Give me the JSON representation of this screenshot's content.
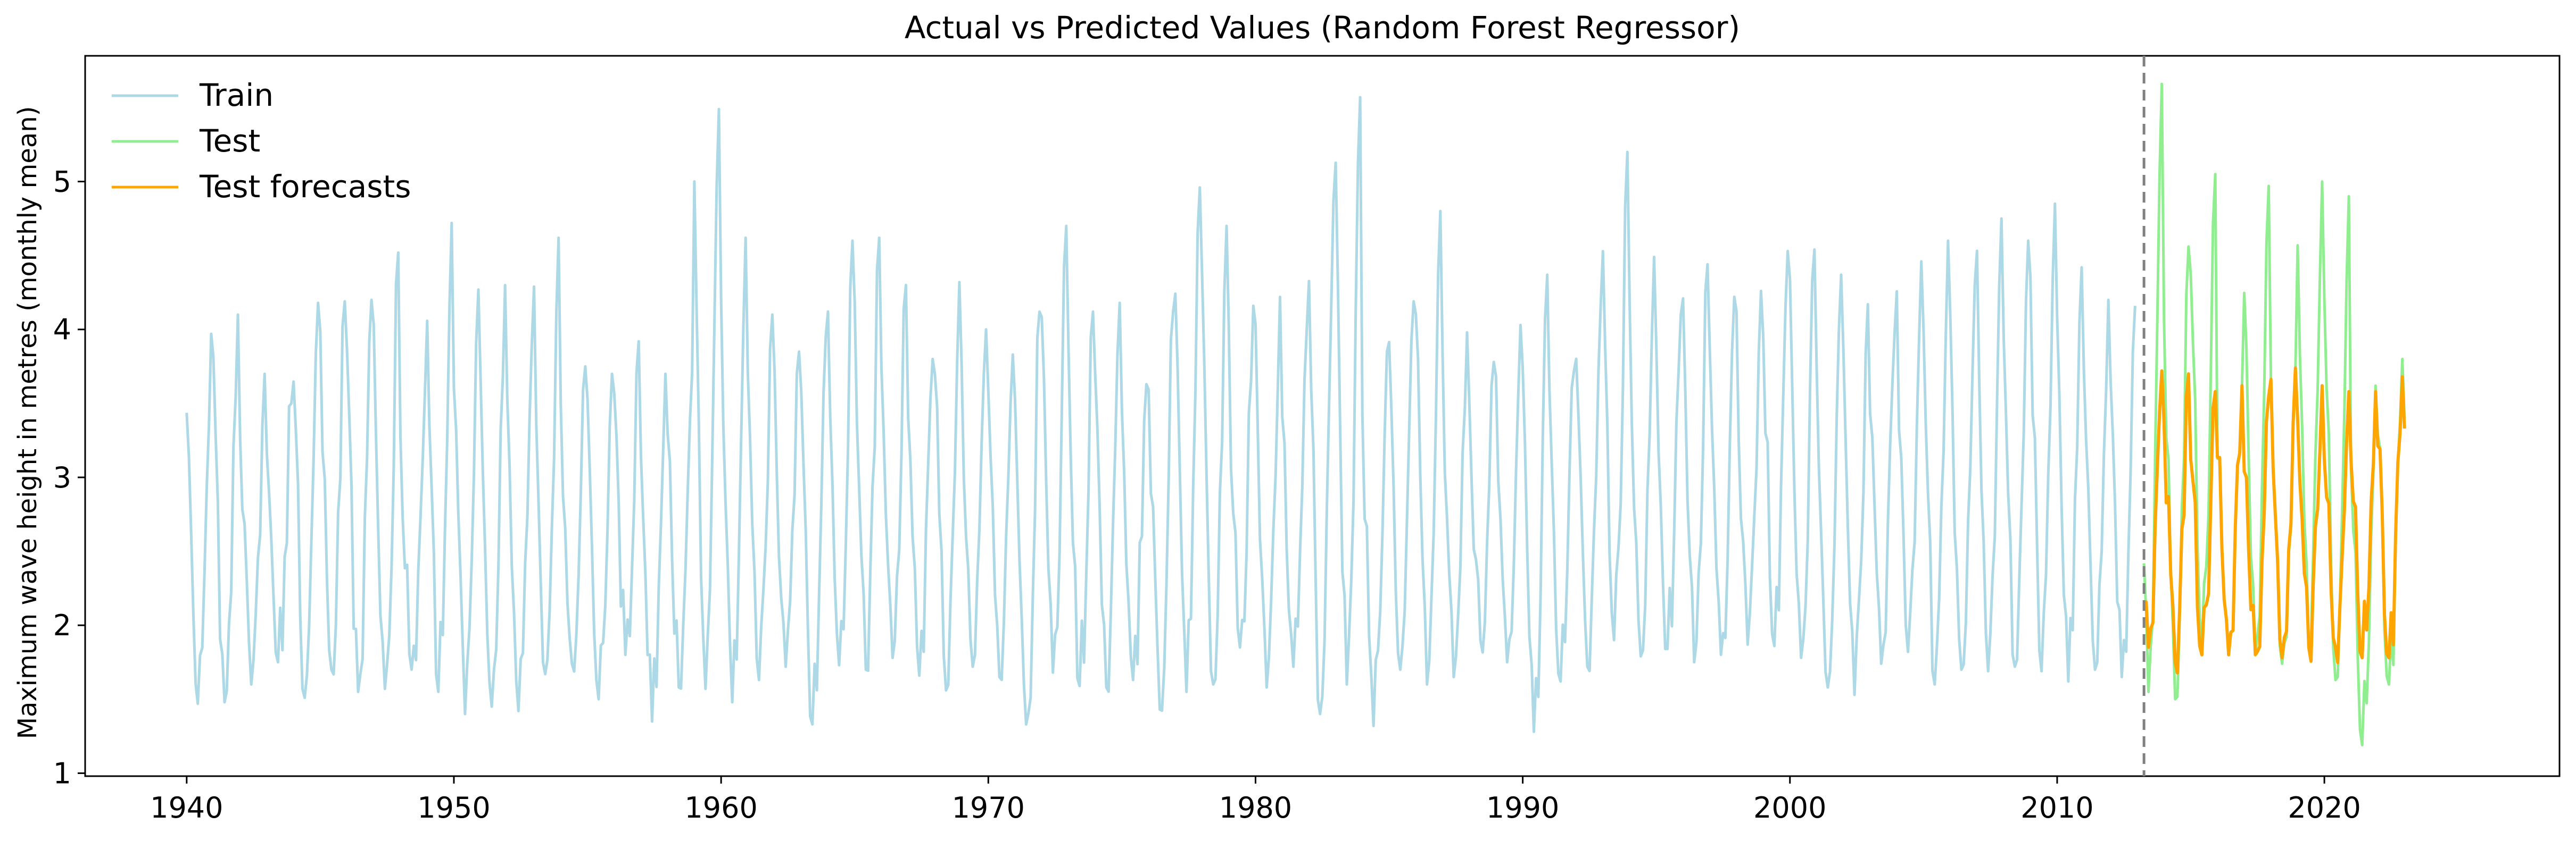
{
  "chart_data": {
    "type": "line",
    "title": "Actual vs Predicted Values (Random Forest Regressor)",
    "xlabel": "",
    "ylabel": "Maximum wave height in metres (monthly mean)",
    "xlim": [
      1936.2,
      2028.8
    ],
    "ylim": [
      0.98,
      5.85
    ],
    "xticks": [
      1940,
      1950,
      1960,
      1970,
      1980,
      1990,
      2000,
      2010,
      2020
    ],
    "yticks": [
      1,
      2,
      3,
      4,
      5
    ],
    "grid": false,
    "legend_position": "top-left",
    "split_marker": {
      "x": 2013.25,
      "style": "dashed",
      "color": "#808080"
    },
    "series": [
      {
        "name": "Train",
        "color": "#add8e6",
        "x_start": 1940.0,
        "x_step_years": 0.0833333,
        "annual_peaks": [
          3.97,
          4.1,
          3.7,
          3.5,
          4.18,
          4.19,
          4.2,
          4.52,
          3.58,
          4.72,
          4.27,
          4.3,
          3.9,
          4.62,
          3.75,
          3.7,
          3.92,
          3.7,
          3.71,
          5.49,
          4.62,
          4.1,
          3.85,
          3.95,
          4.6,
          4.62,
          4.3,
          3.8,
          4.32,
          4.0,
          3.83,
          4.12,
          4.7,
          4.12,
          4.18,
          3.63,
          4.12,
          4.96,
          4.7,
          4.16,
          4.22,
          4.0,
          4.87,
          5.57,
          3.85,
          4.19,
          4.8,
          3.98,
          3.78,
          4.03,
          4.37,
          3.72,
          4.16,
          5.2,
          4.49,
          4.1,
          4.44,
          4.22,
          4.26,
          4.53,
          4.54,
          4.37,
          4.17,
          3.98,
          4.46,
          4.6,
          4.3,
          4.75,
          4.6,
          4.85,
          4.42,
          4.2,
          4.16
        ],
        "annual_troughs": [
          1.47,
          1.48,
          1.6,
          1.75,
          1.51,
          1.7,
          1.55,
          1.57,
          1.7,
          1.55,
          1.4,
          1.45,
          1.42,
          1.67,
          1.74,
          1.5,
          1.8,
          1.35,
          1.58,
          1.57,
          1.48,
          1.63,
          1.72,
          1.33,
          1.73,
          1.7,
          1.78,
          1.66,
          1.56,
          1.72,
          1.65,
          1.33,
          1.68,
          1.59,
          1.58,
          1.63,
          1.43,
          1.55,
          1.6,
          1.85,
          1.58,
          1.72,
          1.4,
          1.6,
          1.32,
          1.7,
          1.6,
          1.65,
          1.9,
          1.75,
          1.28,
          1.62,
          1.72,
          1.9,
          1.79,
          1.84,
          1.75,
          1.8,
          1.87,
          1.86,
          1.78,
          1.58,
          1.53,
          1.74,
          1.82,
          1.6,
          1.7,
          1.69,
          1.72,
          1.69,
          1.62,
          1.7,
          1.65
        ]
      },
      {
        "name": "Test",
        "color": "#90ee90",
        "x_start": 2013.25,
        "x_step_years": 0.0833333,
        "annual_peaks": [
          5.66,
          4.56,
          5.05,
          3.61,
          4.97,
          3.72,
          5.0,
          4.9,
          3.62,
          3.8
        ],
        "annual_troughs": [
          1.55,
          1.5,
          1.85,
          1.8,
          1.8,
          1.74,
          1.87,
          1.63,
          1.19,
          1.6
        ],
        "end_value": 3.4
      },
      {
        "name": "Test forecasts",
        "color": "#ffa500",
        "x_start": 2013.25,
        "x_step_years": 0.0833333,
        "annual_peaks": [
          3.72,
          3.7,
          3.58,
          3.62,
          3.55,
          3.74,
          3.62,
          3.58,
          3.58,
          3.68
        ],
        "annual_troughs": [
          1.85,
          1.75,
          1.8,
          1.8,
          1.8,
          1.78,
          1.85,
          1.85,
          1.78,
          1.78
        ],
        "end_value": 3.33
      }
    ]
  }
}
